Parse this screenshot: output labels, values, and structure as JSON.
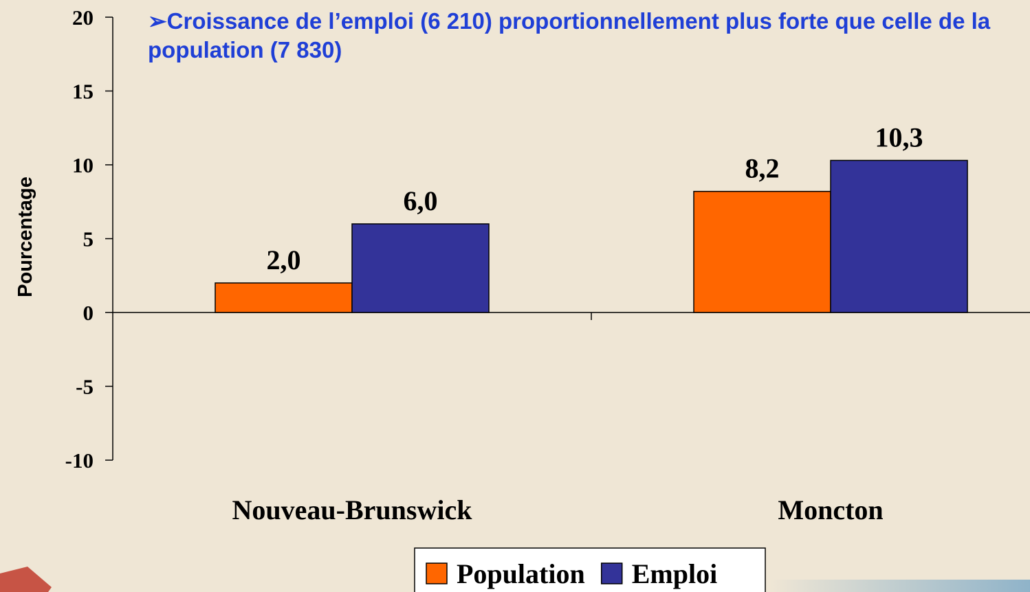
{
  "chart_data": {
    "type": "bar",
    "title": "➢Croissance de l’emploi (6 210) proportionnellement plus forte que celle de la population (7 830)",
    "ylabel": "Pourcentage",
    "categories": [
      "Nouveau-Brunswick",
      "Moncton"
    ],
    "series": [
      {
        "name": "Population",
        "color": "#ff6600",
        "values": [
          2.0,
          8.2
        ],
        "value_labels": [
          "2,0",
          "8,2"
        ]
      },
      {
        "name": "Emploi",
        "color": "#333399",
        "values": [
          6.0,
          10.3
        ],
        "value_labels": [
          "6,0",
          "10,3"
        ]
      }
    ],
    "ylim": [
      -10,
      20
    ],
    "yticks": [
      -10,
      -5,
      0,
      5,
      10,
      15,
      20
    ]
  }
}
